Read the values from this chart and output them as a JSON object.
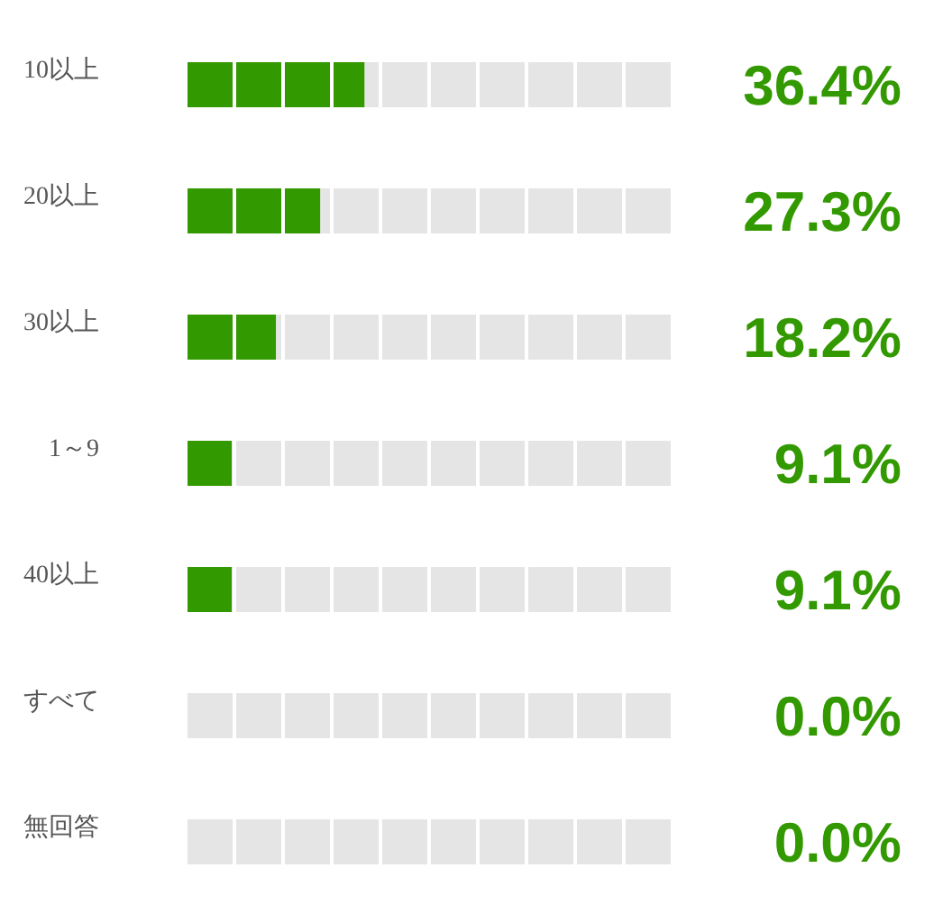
{
  "chart_data": {
    "type": "bar",
    "orientation": "horizontal",
    "stacked": true,
    "categories": [
      "10以上",
      "20以上",
      "30以上",
      "1～9",
      "40以上",
      "すべて",
      "無回答"
    ],
    "series": [
      {
        "color": "#339900",
        "values": [
          36.4,
          27.3,
          18.2,
          9.1,
          9.1,
          0.0,
          0.0
        ],
        "value_labels": [
          "36.4%",
          "27.3%",
          "18.2%",
          "9.1%",
          "9.1%",
          "0.0%",
          "0.0%"
        ]
      },
      {
        "color": "#e5e5e5",
        "values": [
          63.6,
          72.7,
          81.8,
          90.9,
          90.9,
          100,
          100
        ]
      }
    ],
    "xlim": [
      0,
      100
    ],
    "xticks": [
      {
        "value": 10,
        "label": null
      },
      {
        "value": 20,
        "label": null
      },
      {
        "value": 30,
        "label": null
      },
      {
        "value": 40,
        "label": null
      },
      {
        "value": 50,
        "label": null
      },
      {
        "value": 60,
        "label": null
      },
      {
        "value": 70,
        "label": null
      },
      {
        "value": 80,
        "label": null
      },
      {
        "value": 90,
        "label": null
      },
      {
        "value": 100,
        "label": null
      }
    ],
    "grid": "x"
  }
}
